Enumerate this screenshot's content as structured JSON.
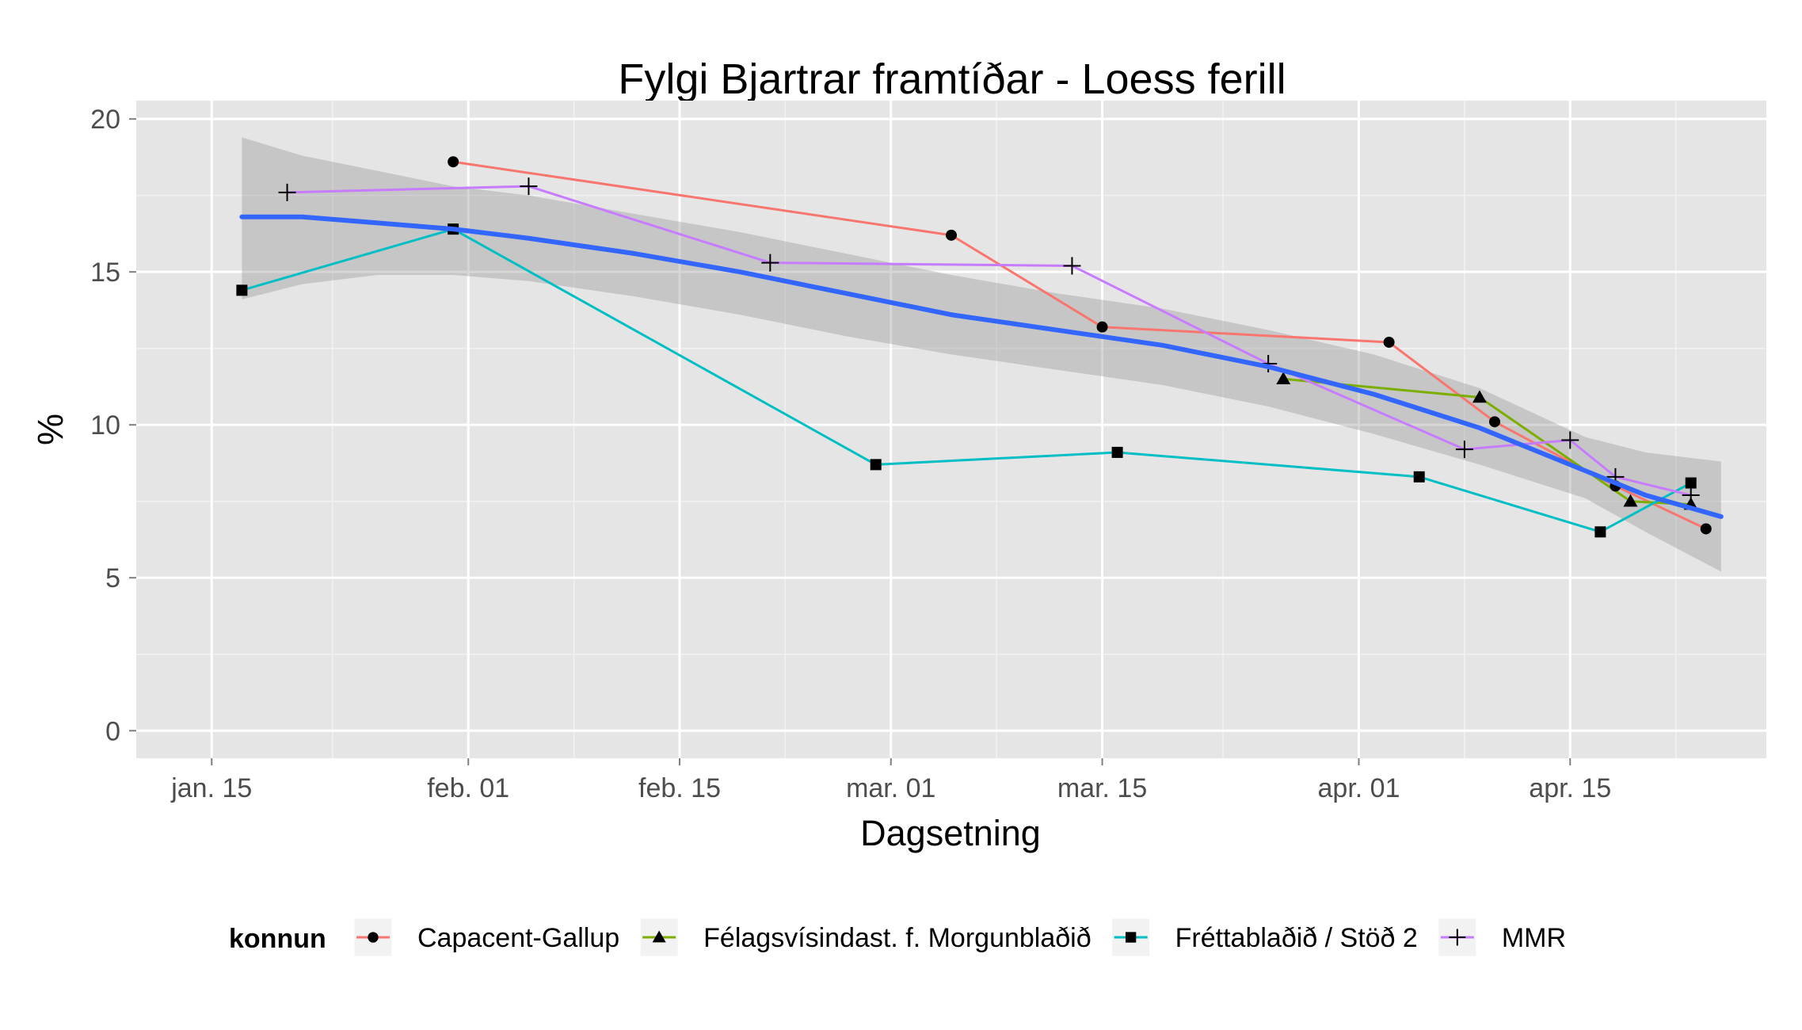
{
  "chart_data": {
    "type": "line",
    "title": "Fylgi Bjartrar framtíðar - Loess ferill",
    "xlabel": "Dagsetning",
    "ylabel": "%",
    "x_type": "date",
    "xlim": [
      "2013-01-10",
      "2013-04-28"
    ],
    "ylim": [
      -0.9,
      20.6
    ],
    "x_ticks": [
      {
        "value": "2013-01-15",
        "label": "jan. 15"
      },
      {
        "value": "2013-02-01",
        "label": "feb. 01"
      },
      {
        "value": "2013-02-15",
        "label": "feb. 15"
      },
      {
        "value": "2013-03-01",
        "label": "mar. 01"
      },
      {
        "value": "2013-03-15",
        "label": "mar. 15"
      },
      {
        "value": "2013-04-01",
        "label": "apr. 01"
      },
      {
        "value": "2013-04-15",
        "label": "apr. 15"
      }
    ],
    "x_minor_ticks": [
      "2013-01-23",
      "2013-02-08",
      "2013-02-22",
      "2013-03-08",
      "2013-03-23",
      "2013-04-08",
      "2013-04-22"
    ],
    "y_ticks": [
      0,
      5,
      10,
      15,
      20
    ],
    "grid": true,
    "legend": {
      "title": "konnun",
      "position": "bottom"
    },
    "series": [
      {
        "name": "Capacent-Gallup",
        "color": "#F8766D",
        "marker": "circle",
        "points": [
          [
            "2013-01-31",
            18.6
          ],
          [
            "2013-03-05",
            16.2
          ],
          [
            "2013-03-15",
            13.2
          ],
          [
            "2013-04-03",
            12.7
          ],
          [
            "2013-04-10",
            10.1
          ],
          [
            "2013-04-18",
            8.0
          ],
          [
            "2013-04-24",
            6.6
          ]
        ]
      },
      {
        "name": "Félagsvísindast. f. Morgunblaðið",
        "color": "#7CAE00",
        "marker": "triangle",
        "points": [
          [
            "2013-03-27",
            11.5
          ],
          [
            "2013-04-09",
            10.9
          ],
          [
            "2013-04-19",
            7.5
          ],
          [
            "2013-04-23",
            7.4
          ]
        ]
      },
      {
        "name": "Fréttablaðið / Stöð 2",
        "color": "#00BFC4",
        "marker": "square",
        "points": [
          [
            "2013-01-17",
            14.4
          ],
          [
            "2013-01-31",
            16.4
          ],
          [
            "2013-02-28",
            8.7
          ],
          [
            "2013-03-16",
            9.1
          ],
          [
            "2013-04-05",
            8.3
          ],
          [
            "2013-04-17",
            6.5
          ],
          [
            "2013-04-23",
            8.1
          ]
        ]
      },
      {
        "name": "MMR",
        "color": "#C77CFF",
        "marker": "plus",
        "points": [
          [
            "2013-01-20",
            17.6
          ],
          [
            "2013-02-05",
            17.8
          ],
          [
            "2013-02-21",
            15.3
          ],
          [
            "2013-03-13",
            15.2
          ],
          [
            "2013-03-26",
            12.0
          ],
          [
            "2013-04-08",
            9.2
          ],
          [
            "2013-04-15",
            9.5
          ],
          [
            "2013-04-18",
            8.3
          ],
          [
            "2013-04-23",
            7.7
          ]
        ]
      }
    ],
    "smooth": {
      "method": "loess",
      "color": "#3366FF",
      "band_color": "#999999",
      "points": [
        [
          "2013-01-17",
          16.8,
          14.1,
          19.4
        ],
        [
          "2013-01-21",
          16.8,
          14.6,
          18.8
        ],
        [
          "2013-01-26",
          16.6,
          14.9,
          18.3
        ],
        [
          "2013-01-31",
          16.4,
          14.9,
          17.8
        ],
        [
          "2013-02-05",
          16.1,
          14.7,
          17.5
        ],
        [
          "2013-02-12",
          15.6,
          14.2,
          16.9
        ],
        [
          "2013-02-19",
          15.0,
          13.6,
          16.3
        ],
        [
          "2013-02-26",
          14.3,
          12.9,
          15.6
        ],
        [
          "2013-03-05",
          13.6,
          12.3,
          14.9
        ],
        [
          "2013-03-12",
          13.1,
          11.8,
          14.3
        ],
        [
          "2013-03-19",
          12.6,
          11.3,
          13.8
        ],
        [
          "2013-03-26",
          11.9,
          10.6,
          13.1
        ],
        [
          "2013-04-02",
          11.0,
          9.7,
          12.3
        ],
        [
          "2013-04-09",
          9.9,
          8.7,
          11.2
        ],
        [
          "2013-04-16",
          8.5,
          7.6,
          9.6
        ],
        [
          "2013-04-20",
          7.7,
          6.5,
          9.1
        ],
        [
          "2013-04-25",
          7.0,
          5.2,
          8.8
        ]
      ]
    }
  }
}
